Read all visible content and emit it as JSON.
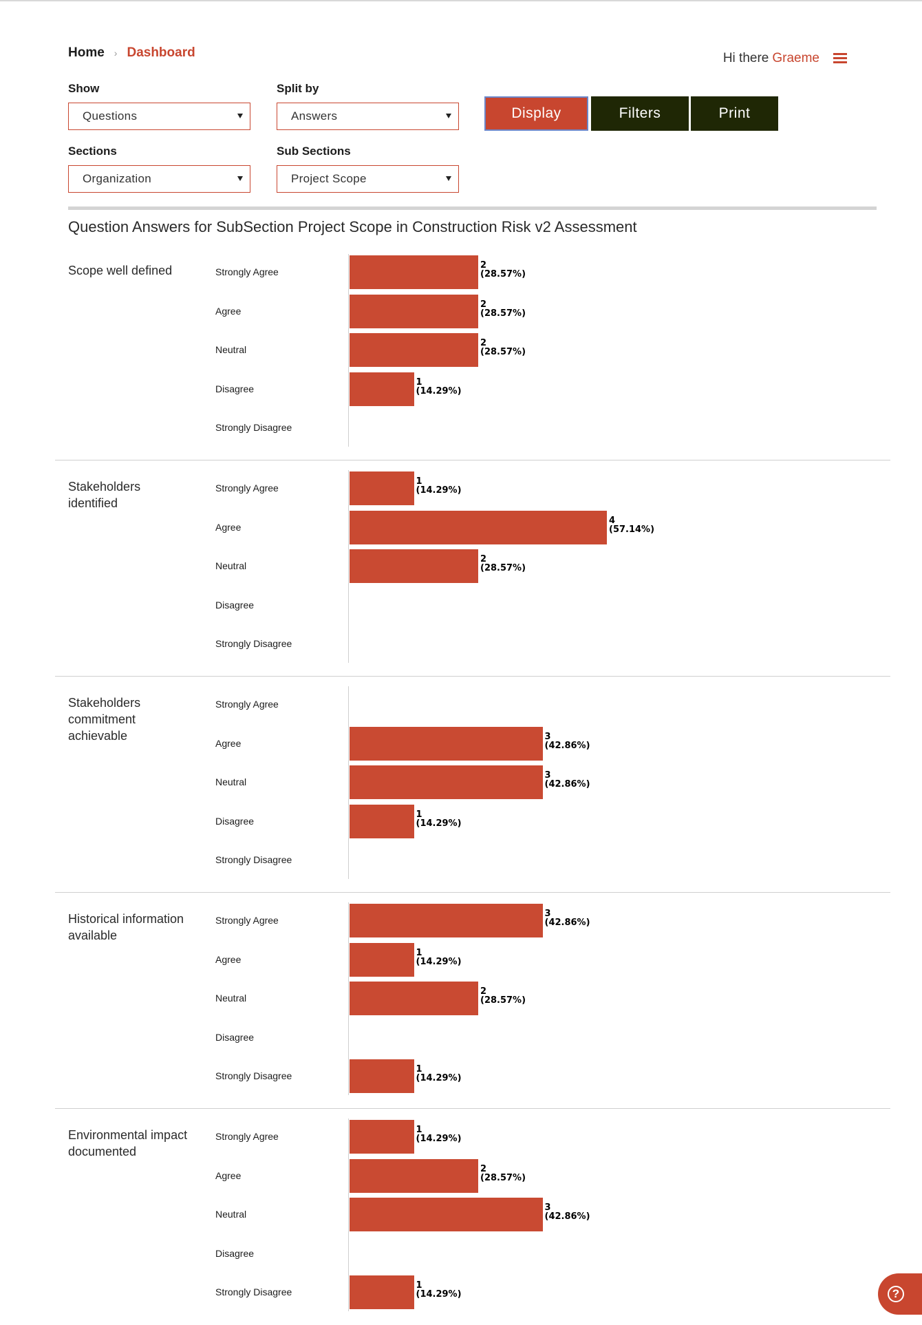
{
  "breadcrumb": {
    "home": "Home",
    "separator": "›",
    "current": "Dashboard"
  },
  "header": {
    "greeting": "Hi there",
    "user": "Graeme"
  },
  "filters": {
    "show": {
      "label": "Show",
      "value": "Questions"
    },
    "split_by": {
      "label": "Split by",
      "value": "Answers"
    },
    "sections": {
      "label": "Sections",
      "value": "Organization"
    },
    "sub_sections": {
      "label": "Sub Sections",
      "value": "Project Scope"
    }
  },
  "buttons": {
    "display": "Display",
    "filters": "Filters",
    "print": "Print"
  },
  "report_title": "Question Answers for SubSection Project Scope in Construction Risk v2 Assessment",
  "colors": {
    "accent": "#c8462f",
    "bar": "#c94a32",
    "dark_button": "#1f2705"
  },
  "chart_data": {
    "type": "bar",
    "orientation": "horizontal",
    "categories": [
      "Strongly Agree",
      "Agree",
      "Neutral",
      "Disagree",
      "Strongly Disagree"
    ],
    "max_count": 7,
    "questions": [
      {
        "title": "Scope well defined",
        "counts": [
          2,
          2,
          2,
          1,
          0
        ],
        "percents": [
          "28.57%",
          "28.57%",
          "28.57%",
          "14.29%",
          ""
        ]
      },
      {
        "title": "Stakeholders identified",
        "counts": [
          1,
          4,
          2,
          0,
          0
        ],
        "percents": [
          "14.29%",
          "57.14%",
          "28.57%",
          "",
          ""
        ]
      },
      {
        "title": "Stakeholders commitment achievable",
        "counts": [
          0,
          3,
          3,
          1,
          0
        ],
        "percents": [
          "",
          "42.86%",
          "42.86%",
          "14.29%",
          ""
        ]
      },
      {
        "title": "Historical information available",
        "counts": [
          3,
          1,
          2,
          0,
          1
        ],
        "percents": [
          "42.86%",
          "14.29%",
          "28.57%",
          "",
          "14.29%"
        ]
      },
      {
        "title": "Environmental impact documented",
        "counts": [
          1,
          2,
          3,
          0,
          1
        ],
        "percents": [
          "14.29%",
          "28.57%",
          "42.86%",
          "",
          "14.29%"
        ]
      }
    ]
  }
}
